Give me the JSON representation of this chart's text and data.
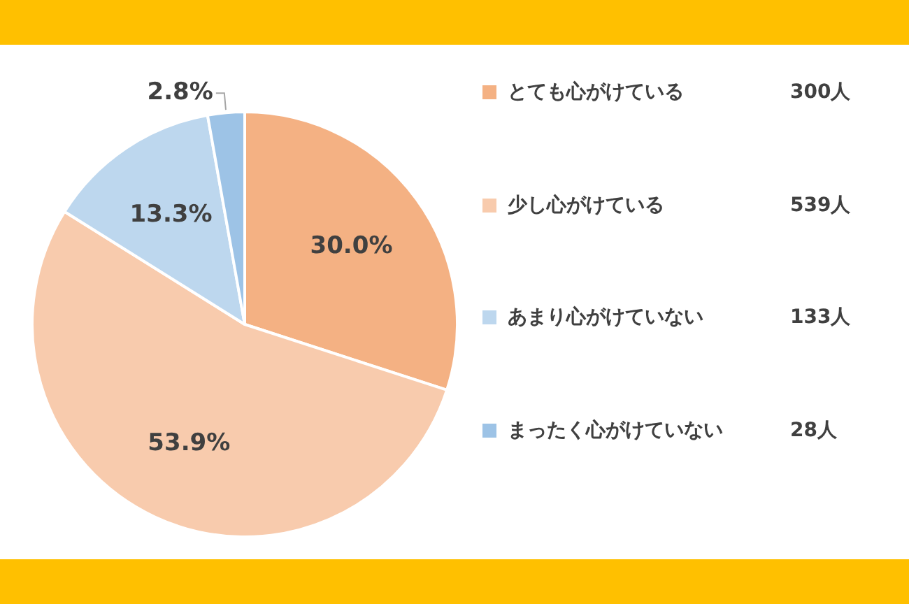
{
  "chart_data": {
    "type": "pie",
    "categories": [
      "とても心がけている",
      "少し心がけている",
      "あまり心がけていない",
      "まったく心がけていない"
    ],
    "values": [
      30.0,
      53.9,
      13.3,
      2.8
    ],
    "colors": [
      "#f4b183",
      "#f8cbad",
      "#bdd7ee",
      "#9dc3e6"
    ],
    "value_labels": [
      "30.0%",
      "53.9%",
      "13.3%",
      "2.8%"
    ],
    "annotations": [
      "300人",
      "539人",
      "133人",
      "28人"
    ],
    "legend": "right"
  }
}
